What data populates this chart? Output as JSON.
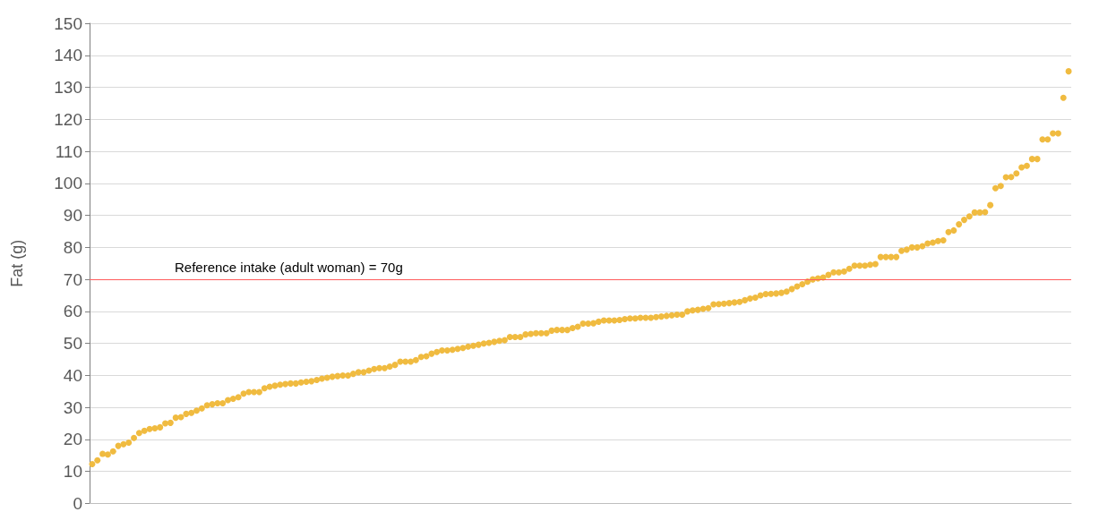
{
  "chart_data": {
    "type": "scatter",
    "ylabel": "Fat (g)",
    "ylim": [
      0,
      150
    ],
    "yticks": [
      0,
      10,
      20,
      30,
      40,
      50,
      60,
      70,
      80,
      90,
      100,
      110,
      120,
      130,
      140,
      150
    ],
    "grid": "y",
    "tick_labels": "y",
    "marker": "circle",
    "categories": [
      null,
      null,
      null,
      null,
      null,
      null,
      null,
      null,
      null,
      null,
      null,
      null,
      null,
      null,
      null,
      null,
      null,
      null,
      null,
      null,
      null,
      null,
      null,
      null,
      null,
      null,
      null,
      null,
      null,
      null,
      null,
      null,
      null,
      null,
      null,
      null,
      null,
      null,
      null,
      null,
      null,
      null,
      null,
      null,
      null,
      null,
      null,
      null,
      null,
      null,
      null,
      null,
      null,
      null,
      null,
      null,
      null,
      null,
      null,
      null,
      null,
      null,
      null,
      null,
      null,
      null,
      null,
      null,
      null,
      null,
      null,
      null,
      null,
      null,
      null,
      null,
      null,
      null,
      null,
      null,
      null,
      null,
      null,
      null,
      null,
      null,
      null,
      null,
      null,
      null,
      null,
      null,
      null,
      null,
      null,
      null,
      null,
      null,
      null,
      null,
      null,
      null,
      null,
      null,
      null,
      null,
      null,
      null,
      null,
      null,
      null,
      null,
      null,
      null,
      null,
      null,
      null,
      null,
      null,
      null,
      null,
      null,
      null,
      null,
      null,
      null,
      null,
      null,
      null,
      null,
      null,
      null,
      null,
      null,
      null,
      null,
      null,
      null,
      null,
      null,
      null,
      null,
      null,
      null,
      null,
      null,
      null,
      null,
      null,
      null,
      null,
      null,
      null,
      null,
      null,
      null,
      null,
      null,
      null,
      null,
      null,
      null,
      null,
      null,
      null,
      null,
      null,
      null,
      null,
      null,
      null,
      null,
      null,
      null,
      null,
      null,
      null,
      null,
      null,
      null,
      null,
      null,
      null,
      null,
      null,
      null,
      null,
      null
    ],
    "series": [
      {
        "color": "#f0bb40",
        "values": [
          12.3,
          13.5,
          15.5,
          15.3,
          16.3,
          18,
          18.5,
          19,
          20.5,
          22,
          22.7,
          23.3,
          23.5,
          23.8,
          25,
          25.2,
          26.8,
          27,
          28,
          28.3,
          29,
          29.7,
          30.7,
          31,
          31.3,
          31.3,
          32.3,
          32.7,
          33.2,
          34.3,
          34.8,
          34.8,
          34.8,
          36,
          36.5,
          36.8,
          37.1,
          37.3,
          37.5,
          37.5,
          37.8,
          38,
          38.2,
          38.6,
          39,
          39.3,
          39.6,
          39.8,
          40,
          40,
          40.5,
          41,
          41,
          41.5,
          42,
          42.3,
          42.3,
          42.8,
          43.3,
          44.3,
          44.3,
          44.3,
          44.8,
          45.8,
          46,
          46.8,
          47.3,
          47.8,
          47.8,
          48,
          48.3,
          48.6,
          49,
          49.3,
          49.6,
          50,
          50.2,
          50.5,
          50.8,
          51,
          52,
          52,
          52,
          52.8,
          53,
          53.2,
          53.2,
          53.2,
          54,
          54.2,
          54.2,
          54.2,
          54.8,
          55.2,
          56.2,
          56.2,
          56.3,
          56.8,
          57.2,
          57.2,
          57.2,
          57.3,
          57.6,
          57.8,
          57.8,
          58,
          58,
          58,
          58.2,
          58.4,
          58.6,
          58.8,
          59,
          59,
          60,
          60.3,
          60.5,
          60.8,
          61,
          62.2,
          62.3,
          62.4,
          62.6,
          62.8,
          63,
          63.5,
          64,
          64.3,
          65,
          65.4,
          65.5,
          65.6,
          65.8,
          66.2,
          67,
          67.8,
          68.5,
          69.3,
          70,
          70.3,
          70.6,
          71.4,
          72.2,
          72.2,
          72.5,
          73.3,
          74.3,
          74.3,
          74.3,
          74.6,
          74.8,
          77,
          77,
          77,
          77,
          78.9,
          79.3,
          80,
          80,
          80.4,
          81.2,
          81.5,
          82,
          82.2,
          84.8,
          85.3,
          87.2,
          88.6,
          89.7,
          90.9,
          90.9,
          91,
          93.2,
          98.5,
          99.2,
          101.9,
          102,
          103.1,
          105,
          105.5,
          107.6,
          107.6,
          113.7,
          113.7,
          115.6,
          115.6,
          126.7,
          135
        ]
      }
    ],
    "ref_lines": [
      {
        "axis": "y",
        "value": 70,
        "label": "Reference intake (adult woman) = 70g",
        "color": "#ff5b5b"
      }
    ]
  }
}
